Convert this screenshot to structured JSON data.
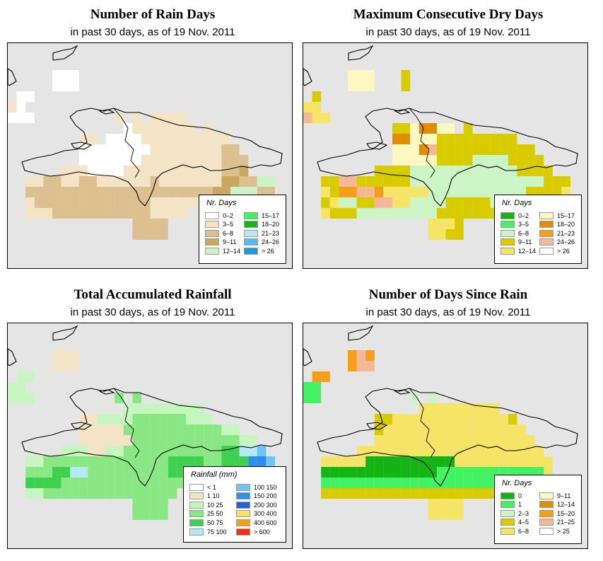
{
  "panels": [
    {
      "title": "Number of Rain Days",
      "subtitle": "in past 30 days, as of  19 Nov. 2011",
      "legend": {
        "title": "Nr. Days",
        "items": [
          {
            "label": "0–2",
            "color": "#ffffff"
          },
          {
            "label": "3–5",
            "color": "#f3e4c6"
          },
          {
            "label": "6–8",
            "color": "#dcc090"
          },
          {
            "label": "9–11",
            "color": "#caa85e"
          },
          {
            "label": "12–14",
            "color": "#ccf2c6"
          },
          {
            "label": "15–17",
            "color": "#43f263"
          },
          {
            "label": "18–20",
            "color": "#14b414"
          },
          {
            "label": "21–23",
            "color": "#b5e9f5"
          },
          {
            "label": "24–26",
            "color": "#5ab8f2"
          },
          {
            "label": "> 26",
            "color": "#2396e0"
          }
        ]
      }
    },
    {
      "title": "Maximum Consecutive Dry Days",
      "subtitle": "in past 30 days, as of  19 Nov. 2011",
      "legend": {
        "title": "Nr. Days",
        "items": [
          {
            "label": "0–2",
            "color": "#14b414"
          },
          {
            "label": "3–5",
            "color": "#43f263"
          },
          {
            "label": "6–8",
            "color": "#ccf5c6"
          },
          {
            "label": "9–11",
            "color": "#d8cc00"
          },
          {
            "label": "12–14",
            "color": "#f5e466"
          },
          {
            "label": "15–17",
            "color": "#fff7c2"
          },
          {
            "label": "18–20",
            "color": "#e08e00"
          },
          {
            "label": "21–23",
            "color": "#f59e18"
          },
          {
            "label": "24–26",
            "color": "#f5b896"
          },
          {
            "label": "> 26",
            "color": "#ffffff"
          }
        ]
      }
    },
    {
      "title": "Total Accumulated Rainfall",
      "subtitle": "in past 30 days, as of  19 Nov. 2011",
      "legend": {
        "title": "Rainfall (mm)",
        "items": [
          {
            "label": "< 1",
            "color": "#ffffff"
          },
          {
            "label": "1   10",
            "color": "#f3e4c6"
          },
          {
            "label": "10   25",
            "color": "#c6f5c0"
          },
          {
            "label": "25   50",
            "color": "#8ae884"
          },
          {
            "label": "50   75",
            "color": "#3ed050"
          },
          {
            "label": "75  100",
            "color": "#b5e9f5"
          },
          {
            "label": "100  150",
            "color": "#6ec4f2"
          },
          {
            "label": "150  200",
            "color": "#2f8ee8"
          },
          {
            "label": "200  300",
            "color": "#2a5fd6"
          },
          {
            "label": "300  400",
            "color": "#f5e466"
          },
          {
            "label": "400  600",
            "color": "#f59e18"
          },
          {
            "label": "> 600",
            "color": "#f23010"
          }
        ]
      }
    },
    {
      "title": "Number of Days Since Rain",
      "subtitle": "in past 30 days, as of  19 Nov. 2011",
      "legend": {
        "title": "Nr. Days",
        "items": [
          {
            "label": "0",
            "color": "#14b414"
          },
          {
            "label": "1",
            "color": "#43f263"
          },
          {
            "label": "2–3",
            "color": "#ccf5c6"
          },
          {
            "label": "4–5",
            "color": "#d8cc00"
          },
          {
            "label": "6–8",
            "color": "#f5e466"
          },
          {
            "label": "9–11",
            "color": "#fff7c2"
          },
          {
            "label": "12–14",
            "color": "#e08e00"
          },
          {
            "label": "15–20",
            "color": "#f59e18"
          },
          {
            "label": "21–25",
            "color": "#f5b896"
          },
          {
            "label": "> 25",
            "color": "#ffffff"
          }
        ]
      }
    }
  ],
  "grids": [
    [
      "................................",
      "................................",
      ".....000........................",
      ".....000........................",
      ".00.............................",
      "10..............................",
      "000.........1.1.1111............",
      ".............01111111.1.........",
      "........11.00001111111111.......",
      "........000000001111111122......",
      "........0000000111111111222.....",
      "......111000011111111111223.....",
      "..1122112211111121111111332244..",
      "..2222222222222222222223344422..",
      "..1222222222222211111112222242..",
      "..111222222222221111.....11..5..",
      "..............2222..............",
      "..............2222..............",
      "................................",
      "................................"
    ],
    [
      "................................",
      "................................",
      ".....555...3....................",
      ".....555...3....................",
      ".3..........................",
      "44...........................",
      "844.........................",
      "..........3356655.3.............",
      "..........66555333333333........",
      "..........5556833333333333......",
      "..........55555333322223333.....",
      "........33332222222222223333....",
      "..3388333333222222222222222333..",
      "..4377887444442222222222233334..",
      "..3422338844222233333223343443..",
      "..43332222222223333333....3..3..",
      "..............4443..............",
      "..............4433..............",
      "................................",
      "................................"
    ],
    [
      "................................",
      "................................",
      ".....111........................",
      ".....111........................",
      ".22.............................",
      "22..............................",
      "222.........3.3.................",
      ".............222222222..........",
      "........112222333333222.........",
      "........111113333333333322......",
      "........11111133333333333322....",
      "......22211223333333333344556...",
      "..2233333333333333444433444776..",
      "..3334455333333333444444666776..",
      "..4444333333333333333333233333..",
      "..22333333333333333..33.........",
      "..............3333..............",
      "..............3333..............",
      "................................",
      "................................"
    ],
    [
      "................................",
      "................................",
      ".....787........................",
      ".....788........................",
      ".77.............................",
      "11..............................",
      "11..........2.2.................",
      ".............444444444..........",
      "........3344444444444443........",
      "........34444444444444444.......",
      "........444444444444444444......",
      "......444444444444444444444.....",
      "..44444000000000044444444444....",
      "..00000000000001111111111114....",
      "..111111111111111111111114444...",
      "..33333333333333333333333.......",
      "..............4444..............",
      "..............4444..............",
      "................................",
      "................................"
    ]
  ]
}
